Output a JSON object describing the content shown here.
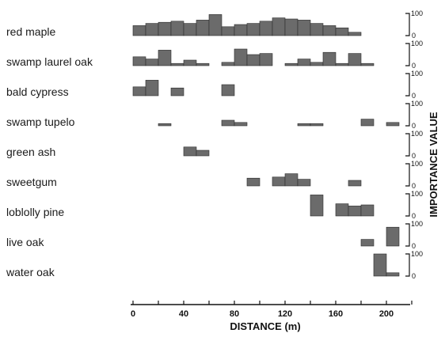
{
  "chart_data": {
    "type": "bar",
    "xlabel": "DISTANCE (m)",
    "ylabel": "IMPORTANCE VALUE",
    "xlim": [
      0,
      220
    ],
    "x_ticks": [
      "0",
      "40",
      "80",
      "120",
      "160",
      "200"
    ],
    "ylim": [
      0,
      100
    ],
    "scale_labels": [
      "100",
      "0"
    ],
    "bar_width_m": 10,
    "colors": {
      "bar": "#6b6b6b",
      "axis": "#111111",
      "text": "#1a1a1a"
    },
    "series": [
      {
        "name": "red maple",
        "bars": [
          {
            "x": 0,
            "value": 45
          },
          {
            "x": 10,
            "value": 55
          },
          {
            "x": 20,
            "value": 60
          },
          {
            "x": 30,
            "value": 65
          },
          {
            "x": 40,
            "value": 55
          },
          {
            "x": 50,
            "value": 70
          },
          {
            "x": 60,
            "value": 95
          },
          {
            "x": 70,
            "value": 40
          },
          {
            "x": 80,
            "value": 50
          },
          {
            "x": 90,
            "value": 55
          },
          {
            "x": 100,
            "value": 65
          },
          {
            "x": 110,
            "value": 80
          },
          {
            "x": 120,
            "value": 75
          },
          {
            "x": 130,
            "value": 70
          },
          {
            "x": 140,
            "value": 55
          },
          {
            "x": 150,
            "value": 45
          },
          {
            "x": 160,
            "value": 35
          },
          {
            "x": 170,
            "value": 15
          }
        ]
      },
      {
        "name": "swamp laurel oak",
        "bars": [
          {
            "x": 0,
            "value": 40
          },
          {
            "x": 10,
            "value": 30
          },
          {
            "x": 20,
            "value": 70
          },
          {
            "x": 30,
            "value": 10
          },
          {
            "x": 40,
            "value": 25
          },
          {
            "x": 50,
            "value": 10
          },
          {
            "x": 70,
            "value": 15
          },
          {
            "x": 80,
            "value": 75
          },
          {
            "x": 90,
            "value": 50
          },
          {
            "x": 100,
            "value": 55
          },
          {
            "x": 120,
            "value": 10
          },
          {
            "x": 130,
            "value": 30
          },
          {
            "x": 140,
            "value": 15
          },
          {
            "x": 150,
            "value": 60
          },
          {
            "x": 160,
            "value": 10
          },
          {
            "x": 170,
            "value": 55
          },
          {
            "x": 180,
            "value": 10
          }
        ]
      },
      {
        "name": "bald cypress",
        "bars": [
          {
            "x": 0,
            "value": 40
          },
          {
            "x": 10,
            "value": 70
          },
          {
            "x": 30,
            "value": 35
          },
          {
            "x": 70,
            "value": 50
          }
        ]
      },
      {
        "name": "swamp tupelo",
        "bars": [
          {
            "x": 20,
            "value": 10
          },
          {
            "x": 70,
            "value": 25
          },
          {
            "x": 80,
            "value": 15
          },
          {
            "x": 130,
            "value": 10
          },
          {
            "x": 140,
            "value": 10
          },
          {
            "x": 180,
            "value": 30
          },
          {
            "x": 200,
            "value": 15
          }
        ]
      },
      {
        "name": "green ash",
        "bars": [
          {
            "x": 40,
            "value": 40
          },
          {
            "x": 50,
            "value": 25
          }
        ]
      },
      {
        "name": "sweetgum",
        "bars": [
          {
            "x": 90,
            "value": 35
          },
          {
            "x": 110,
            "value": 40
          },
          {
            "x": 120,
            "value": 55
          },
          {
            "x": 130,
            "value": 30
          },
          {
            "x": 170,
            "value": 25
          }
        ]
      },
      {
        "name": "loblolly pine",
        "bars": [
          {
            "x": 140,
            "value": 95
          },
          {
            "x": 160,
            "value": 55
          },
          {
            "x": 170,
            "value": 45
          },
          {
            "x": 180,
            "value": 50
          }
        ]
      },
      {
        "name": "live oak",
        "bars": [
          {
            "x": 180,
            "value": 30
          },
          {
            "x": 200,
            "value": 85
          }
        ]
      },
      {
        "name": "water oak",
        "bars": [
          {
            "x": 190,
            "value": 100
          },
          {
            "x": 200,
            "value": 15
          }
        ]
      }
    ]
  }
}
